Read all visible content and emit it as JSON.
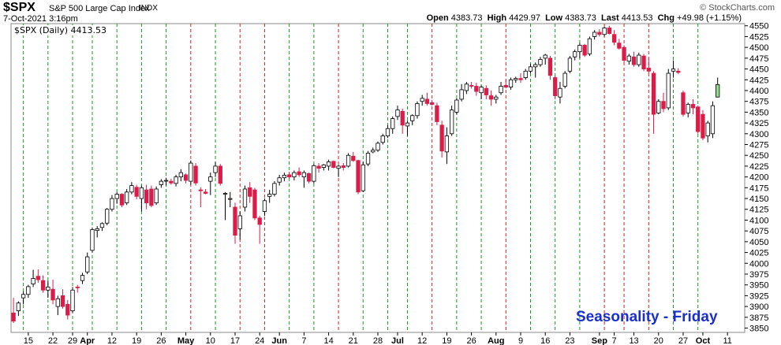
{
  "header": {
    "symbol": "$SPX",
    "description": "S&P 500 Large Cap Index",
    "exchange": "INDX",
    "datetime": "7-Oct-2021 3:16pm",
    "credit": "© StockCharts.com",
    "open_label": "Open",
    "open_value": "4383.73",
    "high_label": "High",
    "high_value": "4429.97",
    "low_label": "Low",
    "low_value": "4383.73",
    "last_label": "Last",
    "last_value": "4413.53",
    "chg_label": "Chg",
    "chg_value": "+49.98 (+1.15%)"
  },
  "legend": {
    "text": "$SPX (Daily) 4413.53"
  },
  "annotation": {
    "text": "Seasonality - Friday"
  },
  "colors": {
    "up": "#ffffff",
    "down": "#dc1c48",
    "last_up": "#90e090",
    "edge": "#000000",
    "grid_green": "#1a9a1a",
    "grid_red": "#d62020",
    "axis": "#000000"
  },
  "chart_data": {
    "type": "candlestick",
    "y_label_interval": 25,
    "ylim": [
      3840,
      4555
    ],
    "y_ticks": [
      3850,
      3875,
      3900,
      3925,
      3950,
      3975,
      4000,
      4025,
      4050,
      4075,
      4100,
      4125,
      4150,
      4175,
      4200,
      4225,
      4250,
      4275,
      4300,
      4325,
      4350,
      4375,
      4400,
      4425,
      4450,
      4475,
      4500,
      4525,
      4550
    ],
    "x_labels": [
      {
        "text": "15",
        "index": 3
      },
      {
        "text": "22",
        "index": 8
      },
      {
        "text": "29",
        "index": 12
      },
      {
        "text": "Apr",
        "index": 15
      },
      {
        "text": "12",
        "index": 20
      },
      {
        "text": "19",
        "index": 25
      },
      {
        "text": "26",
        "index": 30
      },
      {
        "text": "May",
        "index": 35
      },
      {
        "text": "10",
        "index": 40
      },
      {
        "text": "17",
        "index": 45
      },
      {
        "text": "24",
        "index": 50
      },
      {
        "text": "Jun",
        "index": 54
      },
      {
        "text": "7",
        "index": 59
      },
      {
        "text": "14",
        "index": 64
      },
      {
        "text": "21",
        "index": 69
      },
      {
        "text": "28",
        "index": 74
      },
      {
        "text": "Jul",
        "index": 78
      },
      {
        "text": "12",
        "index": 83
      },
      {
        "text": "19",
        "index": 88
      },
      {
        "text": "26",
        "index": 93
      },
      {
        "text": "Aug",
        "index": 98
      },
      {
        "text": "9",
        "index": 103
      },
      {
        "text": "16",
        "index": 108
      },
      {
        "text": "23",
        "index": 113
      },
      {
        "text": "Sep",
        "index": 119
      },
      {
        "text": "7",
        "index": 122
      },
      {
        "text": "13",
        "index": 126
      },
      {
        "text": "20",
        "index": 131
      },
      {
        "text": "27",
        "index": 136
      },
      {
        "text": "Oct",
        "index": 140
      },
      {
        "text": "11",
        "index": 145
      }
    ],
    "friday_lines": [
      {
        "index": 2,
        "color": "green"
      },
      {
        "index": 7,
        "color": "green"
      },
      {
        "index": 12,
        "color": "green"
      },
      {
        "index": 16,
        "color": "green"
      },
      {
        "index": 21,
        "color": "green"
      },
      {
        "index": 26,
        "color": "green"
      },
      {
        "index": 31,
        "color": "green"
      },
      {
        "index": 36,
        "color": "red"
      },
      {
        "index": 41,
        "color": "green"
      },
      {
        "index": 46,
        "color": "red"
      },
      {
        "index": 51,
        "color": "red"
      },
      {
        "index": 56,
        "color": "green"
      },
      {
        "index": 61,
        "color": "green"
      },
      {
        "index": 66,
        "color": "red"
      },
      {
        "index": 71,
        "color": "green"
      },
      {
        "index": 76,
        "color": "green"
      },
      {
        "index": 80,
        "color": "green"
      },
      {
        "index": 85,
        "color": "red"
      },
      {
        "index": 90,
        "color": "green"
      },
      {
        "index": 95,
        "color": "green"
      },
      {
        "index": 100,
        "color": "red"
      },
      {
        "index": 105,
        "color": "green"
      },
      {
        "index": 110,
        "color": "green"
      },
      {
        "index": 115,
        "color": "green"
      },
      {
        "index": 120,
        "color": "red"
      },
      {
        "index": 124,
        "color": "red"
      },
      {
        "index": 129,
        "color": "red"
      },
      {
        "index": 134,
        "color": "green"
      },
      {
        "index": 139,
        "color": "green"
      }
    ],
    "candles": [
      [
        3885,
        3920,
        3862,
        3866
      ],
      [
        3890,
        3912,
        3878,
        3908
      ],
      [
        3920,
        3935,
        3905,
        3928
      ],
      [
        3928,
        3950,
        3920,
        3946
      ],
      [
        3952,
        3985,
        3945,
        3965
      ],
      [
        3970,
        3986,
        3955,
        3962
      ],
      [
        3960,
        3972,
        3932,
        3938
      ],
      [
        3938,
        3960,
        3920,
        3945
      ],
      [
        3940,
        3962,
        3905,
        3915
      ],
      [
        3900,
        3925,
        3880,
        3918
      ],
      [
        3925,
        3940,
        3895,
        3900
      ],
      [
        3905,
        3915,
        3870,
        3880
      ],
      [
        3890,
        3945,
        3885,
        3938
      ],
      [
        3945,
        3950,
        3932,
        3944
      ],
      [
        3960,
        3978,
        3952,
        3972
      ],
      [
        3980,
        4025,
        3975,
        4015
      ],
      [
        4030,
        4083,
        4025,
        4078
      ],
      [
        4076,
        4086,
        4060,
        4080
      ],
      [
        4083,
        4095,
        4075,
        4092
      ],
      [
        4093,
        4128,
        4088,
        4125
      ],
      [
        4125,
        4158,
        4120,
        4150
      ],
      [
        4150,
        4165,
        4138,
        4160
      ],
      [
        4160,
        4162,
        4130,
        4135
      ],
      [
        4140,
        4172,
        4135,
        4165
      ],
      [
        4165,
        4188,
        4160,
        4180
      ],
      [
        4176,
        4182,
        4148,
        4155
      ],
      [
        4150,
        4180,
        4120,
        4175
      ],
      [
        4170,
        4182,
        4125,
        4140
      ],
      [
        4172,
        4180,
        4130,
        4134
      ],
      [
        4140,
        4178,
        4135,
        4172
      ],
      [
        4182,
        4195,
        4175,
        4190
      ],
      [
        4192,
        4198,
        4180,
        4192
      ],
      [
        4190,
        4196,
        4182,
        4186
      ],
      [
        4185,
        4205,
        4178,
        4200
      ],
      [
        4200,
        4218,
        4190,
        4210
      ],
      [
        4205,
        4208,
        4185,
        4192
      ],
      [
        4190,
        4238,
        4182,
        4232
      ],
      [
        4225,
        4232,
        4180,
        4186
      ],
      [
        4170,
        4176,
        4130,
        4168
      ],
      [
        4165,
        4172,
        4160,
        4162
      ],
      [
        4190,
        4210,
        4158,
        4200
      ],
      [
        4210,
        4235,
        4200,
        4225
      ],
      [
        4225,
        4230,
        4180,
        4185
      ],
      [
        4160,
        4165,
        4100,
        4162
      ],
      [
        4148,
        4165,
        4130,
        4150
      ],
      [
        4130,
        4140,
        4045,
        4065
      ],
      [
        4080,
        4120,
        4055,
        4110
      ],
      [
        4130,
        4180,
        4120,
        4172
      ],
      [
        4175,
        4188,
        4140,
        4155
      ],
      [
        4170,
        4175,
        4100,
        4105
      ],
      [
        4105,
        4110,
        4045,
        4090
      ],
      [
        4120,
        4150,
        4110,
        4145
      ],
      [
        4155,
        4170,
        4140,
        4160
      ],
      [
        4160,
        4190,
        4155,
        4185
      ],
      [
        4188,
        4205,
        4180,
        4198
      ],
      [
        4198,
        4210,
        4190,
        4204
      ],
      [
        4205,
        4212,
        4195,
        4200
      ],
      [
        4200,
        4215,
        4192,
        4210
      ],
      [
        4212,
        4222,
        4200,
        4205
      ],
      [
        4200,
        4215,
        4175,
        4210
      ],
      [
        4208,
        4210,
        4185,
        4190
      ],
      [
        4190,
        4230,
        4185,
        4226
      ],
      [
        4225,
        4232,
        4210,
        4220
      ],
      [
        4222,
        4230,
        4215,
        4228
      ],
      [
        4225,
        4240,
        4215,
        4235
      ],
      [
        4236,
        4238,
        4220,
        4222
      ],
      [
        4220,
        4228,
        4200,
        4225
      ],
      [
        4226,
        4232,
        4215,
        4222
      ],
      [
        4225,
        4255,
        4222,
        4250
      ],
      [
        4248,
        4258,
        4235,
        4238
      ],
      [
        4238,
        4240,
        4160,
        4165
      ],
      [
        4168,
        4235,
        4165,
        4228
      ],
      [
        4230,
        4260,
        4225,
        4255
      ],
      [
        4258,
        4268,
        4255,
        4262
      ],
      [
        4262,
        4282,
        4258,
        4278
      ],
      [
        4280,
        4300,
        4275,
        4295
      ],
      [
        4295,
        4320,
        4290,
        4312
      ],
      [
        4312,
        4340,
        4300,
        4335
      ],
      [
        4340,
        4365,
        4332,
        4355
      ],
      [
        4352,
        4358,
        4300,
        4320
      ],
      [
        4318,
        4330,
        4295,
        4325
      ],
      [
        4330,
        4345,
        4320,
        4342
      ],
      [
        4342,
        4375,
        4335,
        4370
      ],
      [
        4375,
        4390,
        4365,
        4382
      ],
      [
        4380,
        4395,
        4365,
        4370
      ],
      [
        4372,
        4378,
        4365,
        4368
      ],
      [
        4365,
        4372,
        4320,
        4328
      ],
      [
        4320,
        4330,
        4245,
        4260
      ],
      [
        4258,
        4315,
        4230,
        4295
      ],
      [
        4300,
        4365,
        4295,
        4355
      ],
      [
        4350,
        4382,
        4345,
        4378
      ],
      [
        4380,
        4415,
        4375,
        4402
      ],
      [
        4400,
        4420,
        4392,
        4415
      ],
      [
        4412,
        4420,
        4405,
        4410
      ],
      [
        4410,
        4418,
        4388,
        4398
      ],
      [
        4395,
        4412,
        4380,
        4408
      ],
      [
        4405,
        4412,
        4380,
        4390
      ],
      [
        4388,
        4400,
        4365,
        4380
      ],
      [
        4380,
        4390,
        4370,
        4385
      ],
      [
        4395,
        4420,
        4390,
        4410
      ],
      [
        4412,
        4425,
        4405,
        4408
      ],
      [
        4408,
        4430,
        4402,
        4425
      ],
      [
        4425,
        4432,
        4418,
        4428
      ],
      [
        4428,
        4440,
        4418,
        4425
      ],
      [
        4430,
        4450,
        4425,
        4445
      ],
      [
        4445,
        4462,
        4440,
        4455
      ],
      [
        4455,
        4465,
        4430,
        4460
      ],
      [
        4460,
        4478,
        4455,
        4472
      ],
      [
        4475,
        4485,
        4460,
        4482
      ],
      [
        4475,
        4480,
        4425,
        4435
      ],
      [
        4430,
        4435,
        4380,
        4388
      ],
      [
        4385,
        4420,
        4370,
        4405
      ],
      [
        4410,
        4445,
        4405,
        4440
      ],
      [
        4445,
        4480,
        4440,
        4475
      ],
      [
        4478,
        4495,
        4470,
        4490
      ],
      [
        4490,
        4510,
        4475,
        4505
      ],
      [
        4505,
        4508,
        4478,
        4482
      ],
      [
        4485,
        4525,
        4480,
        4520
      ],
      [
        4525,
        4540,
        4518,
        4535
      ],
      [
        4535,
        4542,
        4525,
        4530
      ],
      [
        4530,
        4548,
        4525,
        4545
      ],
      [
        4545,
        4550,
        4530,
        4532
      ],
      [
        4530,
        4540,
        4505,
        4512
      ],
      [
        4510,
        4520,
        4495,
        4498
      ],
      [
        4500,
        4505,
        4465,
        4470
      ],
      [
        4468,
        4485,
        4460,
        4480
      ],
      [
        4478,
        4490,
        4455,
        4460
      ],
      [
        4460,
        4488,
        4455,
        4482
      ],
      [
        4480,
        4485,
        4445,
        4450
      ],
      [
        4452,
        4475,
        4440,
        4445
      ],
      [
        4440,
        4445,
        4300,
        4345
      ],
      [
        4348,
        4380,
        4345,
        4375
      ],
      [
        4375,
        4395,
        4350,
        4358
      ],
      [
        4360,
        4450,
        4355,
        4440
      ],
      [
        4445,
        4470,
        4430,
        4450
      ],
      [
        4445,
        4452,
        4438,
        4442
      ],
      [
        4395,
        4400,
        4340,
        4345
      ],
      [
        4348,
        4372,
        4338,
        4368
      ],
      [
        4368,
        4380,
        4345,
        4360
      ],
      [
        4362,
        4365,
        4300,
        4305
      ],
      [
        4345,
        4355,
        4285,
        4290
      ],
      [
        4295,
        4330,
        4280,
        4325
      ],
      [
        4300,
        4375,
        4290,
        4365
      ],
      [
        4385,
        4430,
        4384,
        4414
      ]
    ]
  }
}
